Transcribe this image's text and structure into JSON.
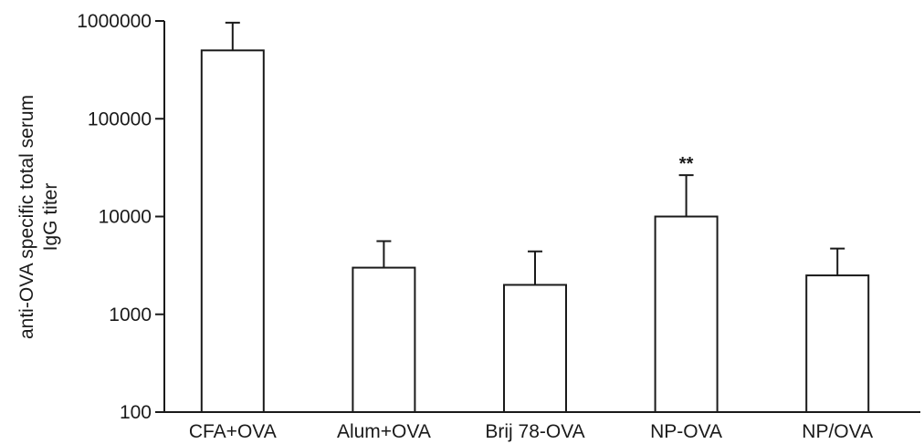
{
  "chart_data": {
    "type": "bar",
    "ylabel_lines": [
      "anti-OVA specific total serum",
      "IgG titer"
    ],
    "yscale": "log",
    "ylim": [
      100,
      1000000
    ],
    "yticks": [
      100,
      1000,
      10000,
      100000,
      1000000
    ],
    "ytick_labels": [
      "100",
      "1000",
      "10000",
      "100000",
      "1000000"
    ],
    "categories": [
      "CFA+OVA",
      "Alum+OVA",
      "Brij 78-OVA",
      "NP-OVA",
      "NP/OVA"
    ],
    "values": [
      500000,
      3000,
      2000,
      10000,
      2500
    ],
    "error_upper": [
      960000,
      5600,
      4400,
      26500,
      4700
    ],
    "annotations": [
      {
        "category": "NP-OVA",
        "text": "**"
      }
    ],
    "bar_fill": "#ffffff",
    "bar_stroke": "#1a1a1a",
    "grid": false,
    "legend": "none"
  }
}
